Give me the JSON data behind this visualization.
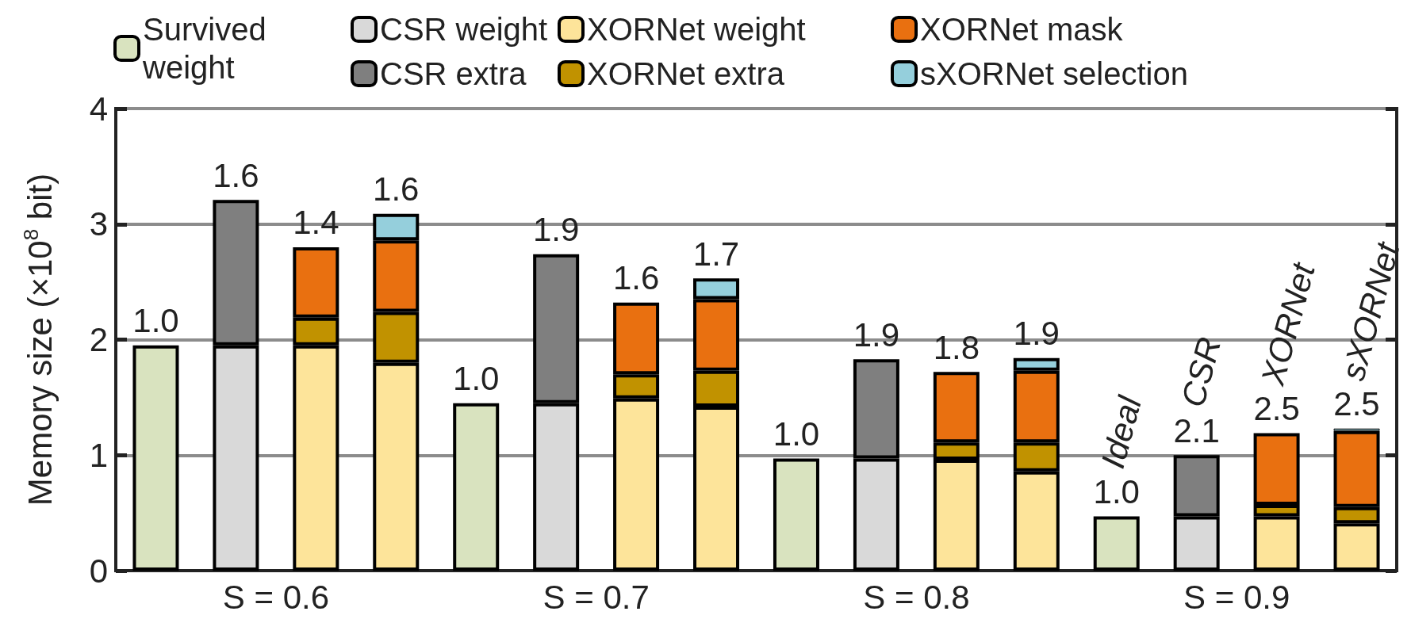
{
  "chart_data": {
    "type": "bar",
    "stacked": true,
    "ylabel": "Memory size (×10$^{8}$ bit)",
    "categories": [
      null,
      null,
      null,
      null,
      null,
      null,
      null,
      null,
      null,
      null,
      null,
      null,
      null,
      null,
      null,
      null
    ],
    "ylim": [
      0,
      4
    ],
    "yticks": [
      0,
      1,
      2,
      3,
      4
    ],
    "grid": "y",
    "legend": "top",
    "series": [
      {
        "name": "Survived weight",
        "color": "#d9e3bf",
        "values": [
          1.95,
          null,
          null,
          null,
          1.45,
          null,
          null,
          null,
          0.97,
          null,
          null,
          null,
          0.47,
          null,
          null,
          null
        ]
      },
      {
        "name": "CSR weight",
        "color": "#d9d9d9",
        "values": [
          null,
          1.95,
          null,
          null,
          null,
          1.45,
          null,
          null,
          null,
          0.97,
          null,
          null,
          null,
          0.47,
          null,
          null
        ]
      },
      {
        "name": "CSR extra",
        "color": "#7f7f7f",
        "values": [
          null,
          1.26,
          null,
          null,
          null,
          1.29,
          null,
          null,
          null,
          0.86,
          null,
          null,
          null,
          0.53,
          null,
          null
        ]
      },
      {
        "name": "XORNet weight",
        "color": "#fde49a",
        "values": [
          null,
          null,
          1.95,
          1.8,
          null,
          null,
          1.49,
          1.42,
          null,
          null,
          0.96,
          0.86,
          null,
          null,
          0.47,
          0.41
        ]
      },
      {
        "name": "XORNet extra",
        "color": "#c19200",
        "values": [
          null,
          null,
          0.24,
          0.44,
          null,
          null,
          0.21,
          0.31,
          null,
          null,
          0.15,
          0.25,
          null,
          null,
          0.1,
          0.14
        ]
      },
      {
        "name": "XORNet mask",
        "color": "#e97010",
        "values": [
          null,
          null,
          0.61,
          0.62,
          null,
          null,
          0.62,
          0.62,
          null,
          null,
          0.61,
          0.62,
          null,
          null,
          0.62,
          0.66
        ]
      },
      {
        "name": "sXORNet selection",
        "color": "#95cfdc",
        "values": [
          null,
          null,
          null,
          0.23,
          null,
          null,
          null,
          0.18,
          null,
          null,
          null,
          0.11,
          null,
          null,
          null,
          0.02
        ]
      }
    ],
    "annotations": [
      "S = 0.6",
      "S = 0.7",
      "S = 0.8",
      "S = 0.9",
      "Ideal",
      "CSR",
      "XORNet",
      "sXORNet",
      "1.0",
      "1.6",
      "1.4",
      "1.6",
      "1.0",
      "1.9",
      "1.6",
      "1.7",
      "1.0",
      "1.9",
      "1.8",
      "1.9",
      "1.0",
      "2.1",
      "2.5",
      "2.5"
    ]
  }
}
